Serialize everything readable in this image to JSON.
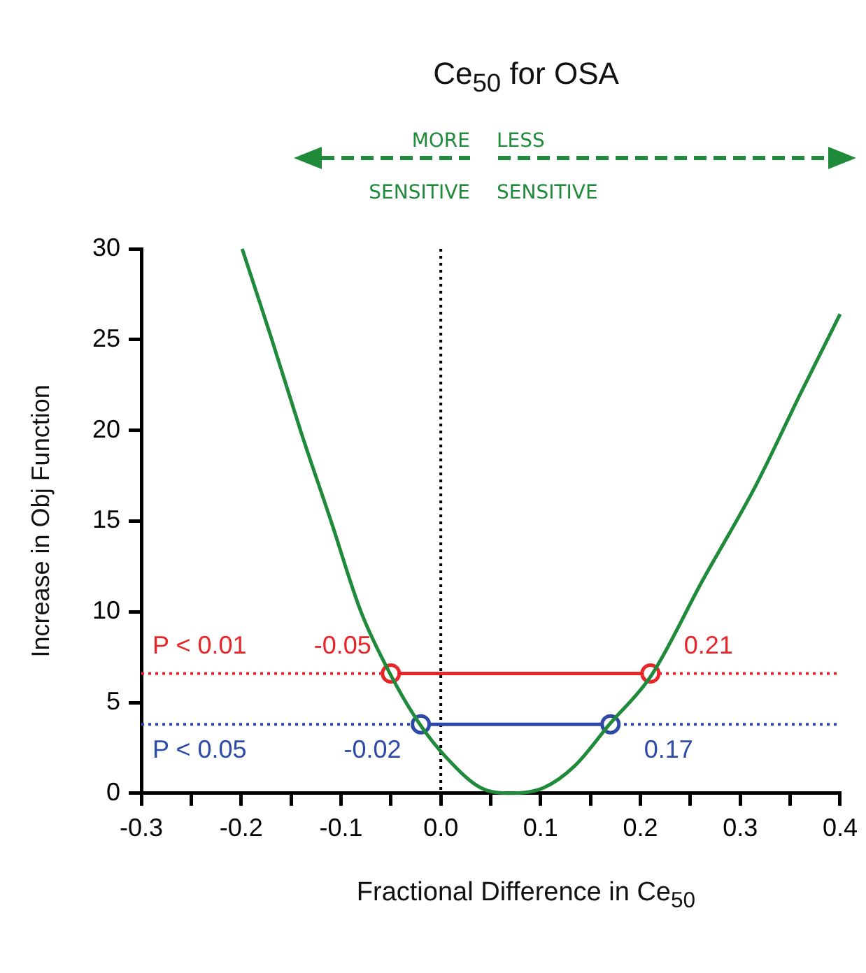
{
  "chart_data": {
    "type": "line",
    "title": "Ce$_{50}$ for OSA",
    "xlabel": "Fractional Difference in Ce$_{50}$",
    "ylabel": "Increase in Obj Function",
    "xlim": [
      -0.3,
      0.4
    ],
    "ylim": [
      0,
      30
    ],
    "xticks": [
      -0.3,
      {
        "value": -0.25,
        "label": null
      },
      -0.2,
      {
        "value": -0.15,
        "label": null
      },
      -0.1,
      {
        "value": -0.05,
        "label": null
      },
      {
        "value": 0,
        "label": "0.0"
      },
      {
        "value": 0.05,
        "label": null
      },
      0.1,
      {
        "value": 0.15,
        "label": null
      },
      0.2,
      {
        "value": 0.25,
        "label": null
      },
      0.3,
      {
        "value": 0.35,
        "label": null
      },
      0.4
    ],
    "yticks": [
      0,
      5,
      10,
      15,
      20,
      25,
      30
    ],
    "legend": false,
    "grid": false,
    "series": [
      {
        "type": "line",
        "marker": "none",
        "line_style": "solid",
        "color": "#1e8a3a",
        "x": [
          -0.199,
          -0.171,
          -0.14,
          -0.11,
          -0.08,
          -0.05,
          -0.021,
          0.005,
          0.04,
          0.072,
          0.103,
          0.134,
          0.169,
          0.211,
          0.262,
          0.315,
          0.361,
          0.4
        ],
        "values": [
          30,
          25.3,
          19.9,
          15,
          10,
          6.5,
          3.8,
          2,
          0.3,
          0,
          0.3,
          1.5,
          3.8,
          6.5,
          11.7,
          16.9,
          22.1,
          26.4
        ]
      },
      {
        "type": "line",
        "marker": "circle",
        "line_style": "solid",
        "color": "#e8262a",
        "x": [
          -0.05,
          0.21
        ],
        "values": [
          6.6,
          6.6
        ]
      },
      {
        "type": "line",
        "marker": "circle",
        "line_style": "solid",
        "color": "#2e4aa8",
        "x": [
          -0.02,
          0.17
        ],
        "values": [
          3.8,
          3.8
        ]
      }
    ],
    "ref_lines": [
      {
        "axis": "y",
        "value": 6.6,
        "label": "P < 0.01",
        "color": "#e8262a",
        "line_style": "dotted"
      },
      {
        "axis": "y",
        "value": 3.8,
        "label": "P < 0.05",
        "color": "#2e4aa8",
        "line_style": "dotted"
      },
      {
        "axis": "x",
        "value": 0,
        "color": "#000000",
        "line_style": "dotted"
      }
    ],
    "annotations": [
      "MORE SENSITIVE",
      "LESS SENSITIVE",
      {
        "text": "-0.05",
        "x": -0.05,
        "y": 6.6
      },
      {
        "text": "0.21",
        "x": 0.21,
        "y": 6.6
      },
      {
        "text": "-0.02",
        "x": -0.02,
        "y": 3.8
      },
      {
        "text": "0.17",
        "x": 0.17,
        "y": 3.8
      }
    ]
  }
}
